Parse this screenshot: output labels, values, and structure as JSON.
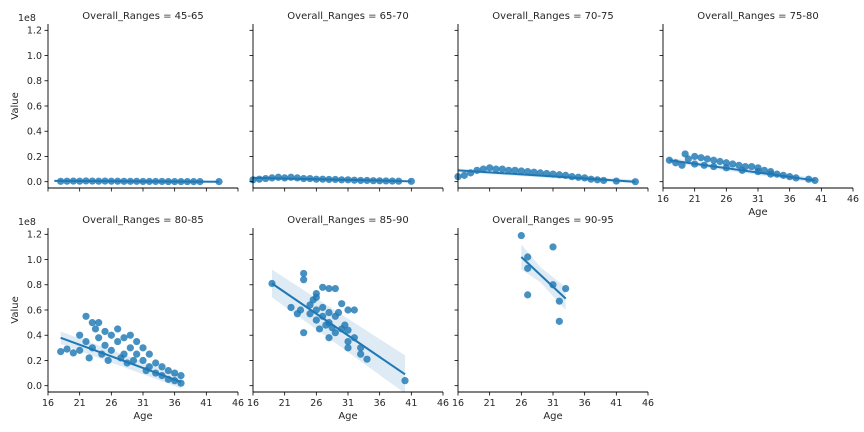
{
  "chart_data": {
    "type": "scatter",
    "facet_variable": "Overall_Ranges",
    "xlabel": "Age",
    "ylabel": "Value",
    "xlim": [
      16,
      46
    ],
    "ylim": [
      -5000000,
      125000000
    ],
    "xticks": [
      16,
      21,
      26,
      31,
      36,
      41,
      46
    ],
    "xtick_labels": [
      "16",
      "21",
      "26",
      "31",
      "36",
      "41",
      "46"
    ],
    "yticks": [
      0,
      20000000,
      40000000,
      60000000,
      80000000,
      100000000,
      120000000
    ],
    "ytick_labels": [
      "0.0",
      "0.2",
      "0.4",
      "0.6",
      "0.8",
      "1.0",
      "1.2"
    ],
    "y_multiplier": "1e8",
    "point_color": "#1f77b4",
    "regression": true,
    "panels": [
      {
        "title": "Overall_Ranges = 45-65",
        "points": [
          [
            18,
            300000
          ],
          [
            19,
            400000
          ],
          [
            20,
            500000
          ],
          [
            21,
            400000
          ],
          [
            22,
            600000
          ],
          [
            23,
            500000
          ],
          [
            24,
            400000
          ],
          [
            25,
            500000
          ],
          [
            26,
            400000
          ],
          [
            27,
            400000
          ],
          [
            28,
            300000
          ],
          [
            29,
            300000
          ],
          [
            30,
            300000
          ],
          [
            31,
            200000
          ],
          [
            32,
            200000
          ],
          [
            33,
            200000
          ],
          [
            34,
            200000
          ],
          [
            35,
            100000
          ],
          [
            36,
            100000
          ],
          [
            37,
            100000
          ],
          [
            38,
            100000
          ],
          [
            39,
            50000
          ],
          [
            40,
            50000
          ],
          [
            43,
            50000
          ]
        ],
        "fit": {
          "x": [
            17,
            43
          ],
          "y": [
            600000,
            0
          ],
          "ci": [
            [
              17,
              1200000,
              0
            ],
            [
              43,
              600000,
              -600000
            ]
          ]
        }
      },
      {
        "title": "Overall_Ranges = 65-70",
        "points": [
          [
            16,
            1500000
          ],
          [
            17,
            2000000
          ],
          [
            18,
            2500000
          ],
          [
            19,
            3000000
          ],
          [
            20,
            3500000
          ],
          [
            21,
            3000000
          ],
          [
            22,
            3500000
          ],
          [
            23,
            3000000
          ],
          [
            24,
            2500000
          ],
          [
            25,
            2500000
          ],
          [
            26,
            2000000
          ],
          [
            27,
            2000000
          ],
          [
            28,
            1800000
          ],
          [
            29,
            1800000
          ],
          [
            30,
            1500000
          ],
          [
            31,
            1500000
          ],
          [
            32,
            1200000
          ],
          [
            33,
            1000000
          ],
          [
            34,
            1000000
          ],
          [
            35,
            800000
          ],
          [
            36,
            700000
          ],
          [
            37,
            600000
          ],
          [
            38,
            500000
          ],
          [
            39,
            400000
          ],
          [
            41,
            300000
          ]
        ],
        "fit": {
          "x": [
            16,
            41
          ],
          "y": [
            3000000,
            300000
          ],
          "ci": [
            [
              16,
              3600000,
              2400000
            ],
            [
              41,
              900000,
              -300000
            ]
          ]
        }
      },
      {
        "title": "Overall_Ranges = 70-75",
        "points": [
          [
            16,
            4000000
          ],
          [
            17,
            5000000
          ],
          [
            18,
            7000000
          ],
          [
            19,
            9000000
          ],
          [
            20,
            10000000
          ],
          [
            21,
            11000000
          ],
          [
            22,
            10000000
          ],
          [
            23,
            10000000
          ],
          [
            24,
            9000000
          ],
          [
            25,
            9000000
          ],
          [
            26,
            8500000
          ],
          [
            27,
            8000000
          ],
          [
            28,
            7500000
          ],
          [
            29,
            7000000
          ],
          [
            30,
            6500000
          ],
          [
            31,
            6000000
          ],
          [
            32,
            5500000
          ],
          [
            33,
            5000000
          ],
          [
            34,
            4000000
          ],
          [
            35,
            3500000
          ],
          [
            36,
            3000000
          ],
          [
            37,
            2000000
          ],
          [
            38,
            1500000
          ],
          [
            39,
            1000000
          ],
          [
            41,
            500000
          ],
          [
            44,
            0
          ]
        ],
        "fit": {
          "x": [
            16,
            44
          ],
          "y": [
            9000000,
            0
          ],
          "ci": [
            [
              16,
              10500000,
              7500000
            ],
            [
              44,
              1500000,
              -1500000
            ]
          ]
        }
      },
      {
        "title": "Overall_Ranges = 75-80",
        "points": [
          [
            17,
            17000000
          ],
          [
            18,
            15000000
          ],
          [
            19,
            13000000
          ],
          [
            19.5,
            22000000
          ],
          [
            20,
            18000000
          ],
          [
            21,
            20000000
          ],
          [
            21,
            14000000
          ],
          [
            22,
            19000000
          ],
          [
            22.5,
            13000000
          ],
          [
            23,
            18000000
          ],
          [
            24,
            17000000
          ],
          [
            24,
            12000000
          ],
          [
            25,
            16000000
          ],
          [
            26,
            15000000
          ],
          [
            26,
            11000000
          ],
          [
            27,
            14000000
          ],
          [
            28,
            13000000
          ],
          [
            28.5,
            9000000
          ],
          [
            29,
            12000000
          ],
          [
            30,
            12000000
          ],
          [
            31,
            11000000
          ],
          [
            31,
            8000000
          ],
          [
            32,
            9000000
          ],
          [
            33,
            8000000
          ],
          [
            33,
            6000000
          ],
          [
            34,
            6000000
          ],
          [
            35,
            5000000
          ],
          [
            36,
            4000000
          ],
          [
            37,
            3000000
          ],
          [
            39,
            2000000
          ],
          [
            40,
            1000000
          ]
        ],
        "fit": {
          "x": [
            17,
            40
          ],
          "y": [
            17000000,
            1000000
          ],
          "ci": [
            [
              17,
              19000000,
              15000000
            ],
            [
              40,
              3000000,
              -1000000
            ]
          ]
        }
      },
      {
        "title": "Overall_Ranges = 80-85",
        "points": [
          [
            18,
            27000000
          ],
          [
            19,
            29000000
          ],
          [
            20,
            26000000
          ],
          [
            21,
            28000000
          ],
          [
            21,
            40000000
          ],
          [
            22,
            55000000
          ],
          [
            22,
            35000000
          ],
          [
            22.5,
            22000000
          ],
          [
            23,
            50000000
          ],
          [
            23,
            30000000
          ],
          [
            23.5,
            45000000
          ],
          [
            24,
            50000000
          ],
          [
            24,
            38000000
          ],
          [
            24.5,
            25000000
          ],
          [
            25,
            43000000
          ],
          [
            25,
            32000000
          ],
          [
            25.5,
            20000000
          ],
          [
            26,
            40000000
          ],
          [
            26,
            28000000
          ],
          [
            27,
            45000000
          ],
          [
            27,
            35000000
          ],
          [
            27.5,
            22000000
          ],
          [
            28,
            38000000
          ],
          [
            28,
            25000000
          ],
          [
            28.5,
            18000000
          ],
          [
            29,
            40000000
          ],
          [
            29,
            30000000
          ],
          [
            29.5,
            20000000
          ],
          [
            30,
            35000000
          ],
          [
            30,
            25000000
          ],
          [
            31,
            30000000
          ],
          [
            31,
            20000000
          ],
          [
            31.5,
            12000000
          ],
          [
            32,
            25000000
          ],
          [
            32,
            15000000
          ],
          [
            33,
            18000000
          ],
          [
            33,
            10000000
          ],
          [
            34,
            15000000
          ],
          [
            34,
            8000000
          ],
          [
            35,
            12000000
          ],
          [
            35,
            5000000
          ],
          [
            36,
            10000000
          ],
          [
            36,
            4000000
          ],
          [
            37,
            8000000
          ],
          [
            37,
            2000000
          ]
        ],
        "fit": {
          "x": [
            18,
            37
          ],
          "y": [
            38000000,
            3000000
          ],
          "ci": [
            [
              18,
              43000000,
              33000000
            ],
            [
              37,
              8000000,
              -2000000
            ]
          ]
        }
      },
      {
        "title": "Overall_Ranges = 85-90",
        "points": [
          [
            19,
            81000000
          ],
          [
            22,
            62000000
          ],
          [
            23,
            57000000
          ],
          [
            23.5,
            60000000
          ],
          [
            24,
            89000000
          ],
          [
            24,
            84000000
          ],
          [
            24,
            42000000
          ],
          [
            25,
            64000000
          ],
          [
            25,
            57000000
          ],
          [
            25.5,
            68000000
          ],
          [
            26,
            73000000
          ],
          [
            26,
            70000000
          ],
          [
            26,
            60000000
          ],
          [
            26,
            52000000
          ],
          [
            26.5,
            45000000
          ],
          [
            27,
            78000000
          ],
          [
            27,
            62000000
          ],
          [
            27,
            55000000
          ],
          [
            27.5,
            48000000
          ],
          [
            28,
            77000000
          ],
          [
            28,
            58000000
          ],
          [
            28,
            50000000
          ],
          [
            28,
            38000000
          ],
          [
            28.5,
            46000000
          ],
          [
            29,
            77000000
          ],
          [
            29,
            55000000
          ],
          [
            29,
            42000000
          ],
          [
            29.5,
            58000000
          ],
          [
            30,
            65000000
          ],
          [
            30,
            45000000
          ],
          [
            30.5,
            48000000
          ],
          [
            31,
            60000000
          ],
          [
            31,
            44000000
          ],
          [
            31,
            35000000
          ],
          [
            31,
            30000000
          ],
          [
            32,
            60000000
          ],
          [
            32,
            38000000
          ],
          [
            33,
            30000000
          ],
          [
            33,
            25000000
          ],
          [
            34,
            21000000
          ],
          [
            40,
            4000000
          ]
        ],
        "fit": {
          "x": [
            19,
            40
          ],
          "y": [
            81000000,
            9000000
          ],
          "ci": [
            [
              19,
              92000000,
              70000000
            ],
            [
              40,
              24000000,
              -6000000
            ]
          ]
        }
      },
      {
        "title": "Overall_Ranges = 90-95",
        "points": [
          [
            26,
            119000000
          ],
          [
            27,
            102000000
          ],
          [
            27,
            93000000
          ],
          [
            27,
            72000000
          ],
          [
            31,
            110000000
          ],
          [
            31,
            80000000
          ],
          [
            32,
            67000000
          ],
          [
            32,
            51000000
          ],
          [
            33,
            77000000
          ]
        ],
        "fit": {
          "x": [
            26,
            33
          ],
          "y": [
            102000000,
            69000000
          ],
          "ci": [
            [
              26,
              112000000,
              92000000
            ],
            [
              29,
              94000000,
              82000000
            ],
            [
              33,
              78000000,
              60000000
            ]
          ]
        }
      }
    ]
  }
}
